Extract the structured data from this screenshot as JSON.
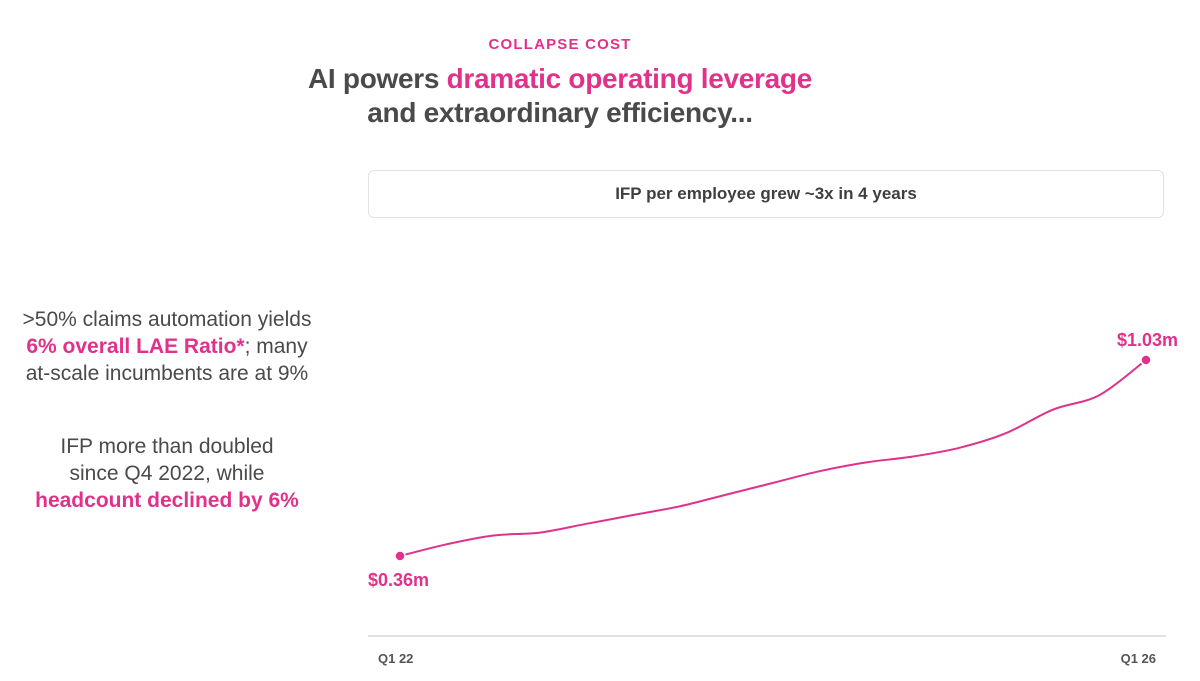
{
  "header": {
    "eyebrow": "COLLAPSE COST",
    "title_part1": "AI powers ",
    "title_accent": "dramatic operating leverage",
    "title_part2": "and extraordinary efficiency..."
  },
  "stats": [
    {
      "line1": ">50% claims automation yields",
      "highlight": "6% overall LAE Ratio*",
      "rest": "; many",
      "line3": "at-scale incumbents are at 9%"
    },
    {
      "line1": "IFP more than doubled",
      "line2": "since Q4 2022, while",
      "highlight": "headcount declined by 6%"
    }
  ],
  "colors": {
    "accent": "#e0328a",
    "text": "#4a4a4a",
    "axis": "#cfcfcf"
  },
  "chart_data": {
    "type": "line",
    "title": "IFP per employee grew ~3x in 4 years",
    "xlabel": "",
    "ylabel": "",
    "x_tick_labels": [
      "Q1 22",
      "Q1 26"
    ],
    "start_label": "$0.36m",
    "end_label": "$1.03m",
    "series": [
      {
        "x": [
          0,
          0.25,
          0.5,
          0.75,
          1,
          1.25,
          1.5,
          1.75,
          2,
          2.25,
          2.5,
          2.75,
          3,
          3.25,
          3.5,
          3.75,
          4
        ],
        "values": [
          0.36,
          0.4,
          0.43,
          0.44,
          0.47,
          0.5,
          0.53,
          0.57,
          0.61,
          0.65,
          0.68,
          0.7,
          0.73,
          0.78,
          0.86,
          0.91,
          1.03
        ]
      }
    ],
    "xlim": [
      0,
      4
    ],
    "ylim": [
      0.2,
      1.1
    ],
    "grid": false
  }
}
